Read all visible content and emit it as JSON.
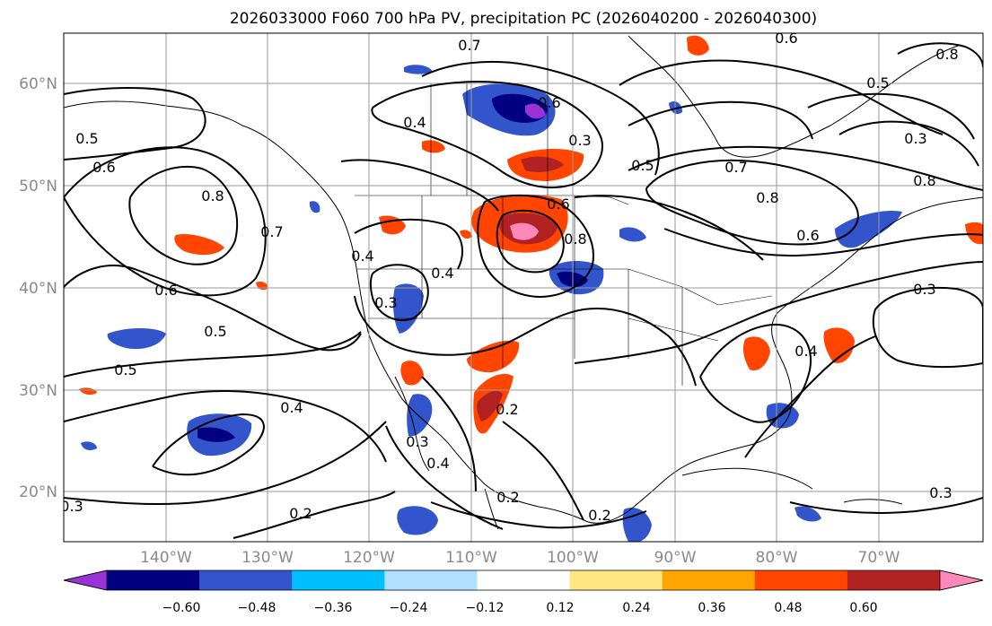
{
  "title": "2026033000 F060 700 hPa PV, precipitation PC (2026040200 - 2026040300)",
  "lat_labels": [
    "60°N",
    "50°N",
    "40°N",
    "30°N",
    "20°N"
  ],
  "lon_labels": [
    "140°W",
    "130°W",
    "120°W",
    "110°W",
    "100°W",
    "90°W",
    "80°W",
    "70°W"
  ],
  "contour_labels": [
    "0.7",
    "0.6",
    "0.5",
    "0.6",
    "0.8",
    "0.7",
    "0.6",
    "0.5",
    "0.5",
    "0.4",
    "0.4",
    "0.3",
    "0.6",
    "0.8",
    "0.7",
    "0.8",
    "0.6",
    "0.3",
    "0.4",
    "0.3",
    "0.2",
    "0.2",
    "0.3",
    "0.4",
    "0.2",
    "0.2",
    "0.3",
    "0.5",
    "0.4",
    "0.3",
    "0.3",
    "0.6",
    "0.5",
    "0.8",
    "0.8",
    "0.4"
  ],
  "colorbar": {
    "colors": [
      "#9b32d6",
      "#000080",
      "#3355cc",
      "#00bfff",
      "#b0e0ff",
      "#ffffff",
      "#ffe680",
      "#ffa500",
      "#ff4500",
      "#b22222",
      "#ff88bb"
    ],
    "ticks": [
      "−0.60",
      "−0.48",
      "−0.36",
      "−0.24",
      "−0.12",
      "0.12",
      "0.24",
      "0.36",
      "0.48",
      "0.60"
    ]
  }
}
